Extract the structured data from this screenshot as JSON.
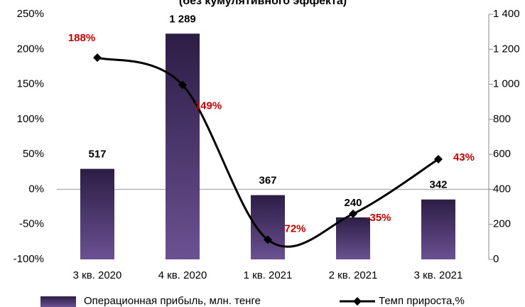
{
  "chart_data": {
    "type": "combo",
    "title": "(без кумулятивного эффекта)",
    "categories": [
      "3 кв. 2020",
      "4 кв. 2020",
      "1 кв. 2021",
      "2 кв. 2021",
      "3 кв. 2021"
    ],
    "series": [
      {
        "name": "Операционная прибыль, млн. тенге",
        "type": "bar",
        "axis": "y2",
        "color": "#4b3868",
        "values": [
          517,
          1289,
          367,
          240,
          342
        ],
        "value_labels": [
          "517",
          "1 289",
          "367",
          "240",
          "342"
        ]
      },
      {
        "name": "Темп прироста,%",
        "type": "line",
        "axis": "y",
        "color": "#000000",
        "label_color": "#c00000",
        "values": [
          188,
          149,
          -72,
          -35,
          43
        ],
        "value_labels": [
          "188%",
          "149%",
          "-72%",
          "-35%",
          "43%"
        ]
      }
    ],
    "ylim": [
      -100,
      250
    ],
    "yticks": [
      {
        "value": -100,
        "label": "-100%"
      },
      {
        "value": -50,
        "label": "-50%"
      },
      {
        "value": 0,
        "label": "0%"
      },
      {
        "value": 50,
        "label": "50%"
      },
      {
        "value": 100,
        "label": "100%"
      },
      {
        "value": 150,
        "label": "150%"
      },
      {
        "value": 200,
        "label": "200%"
      },
      {
        "value": 250,
        "label": "250%"
      }
    ],
    "y2lim": [
      0,
      1400
    ],
    "y2ticks": [
      0,
      200,
      400,
      600,
      800,
      {
        "value": 1000,
        "label": "1 000"
      },
      {
        "value": 1200,
        "label": "1 200"
      },
      {
        "value": 1400,
        "label": "1 400"
      }
    ]
  }
}
